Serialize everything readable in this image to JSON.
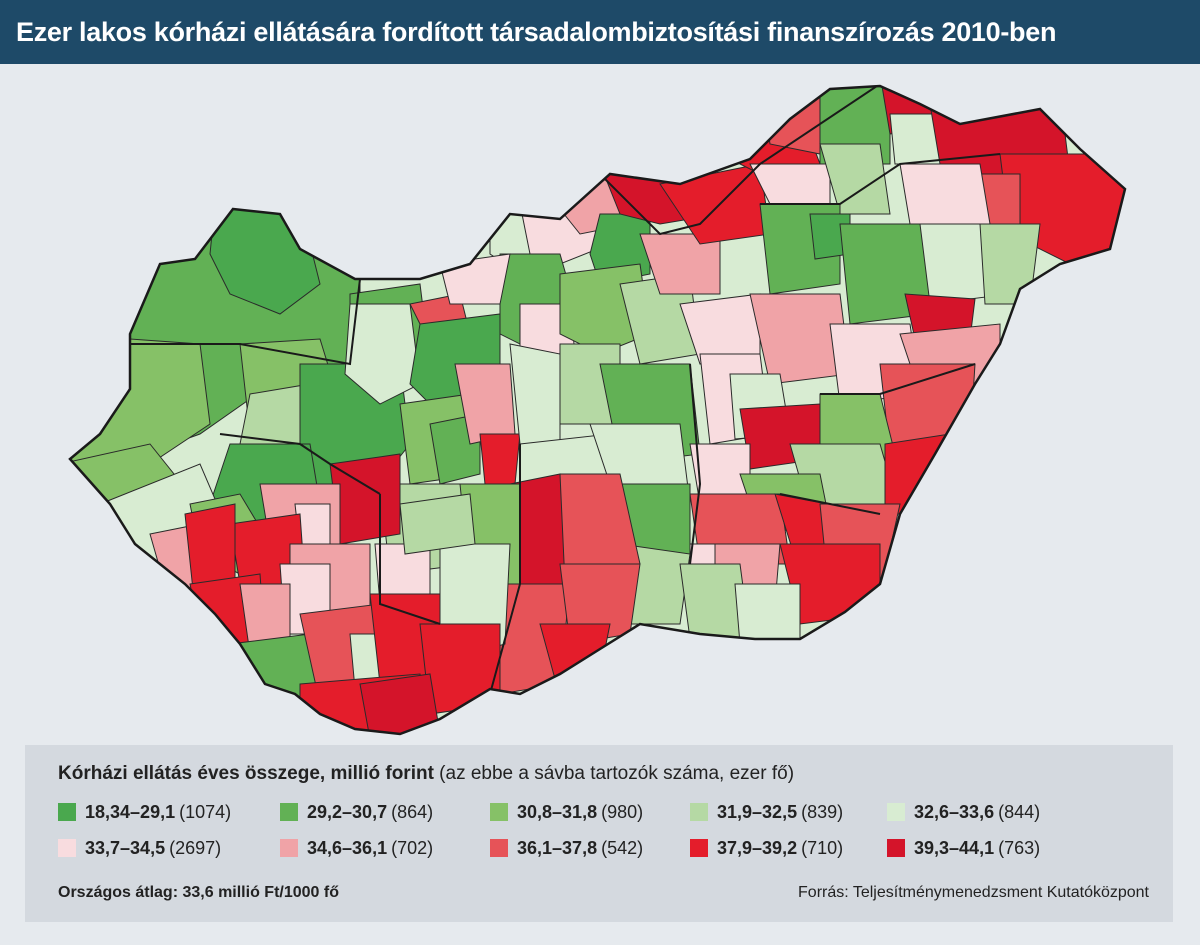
{
  "title": "Ezer lakos kórházi ellátására fordított társadalombiztosítási finanszírozás 2010-ben",
  "legend": {
    "title_bold": "Kórházi ellátás éves összege, millió forint",
    "title_rest": " (az ebbe a sávba tartozók száma, ezer fő)",
    "classes": [
      {
        "range": "18,34–29,1",
        "count": "(1074)",
        "color": "#4aa84e"
      },
      {
        "range": "29,2–30,7",
        "count": "(864)",
        "color": "#62b155"
      },
      {
        "range": "30,8–31,8",
        "count": "(980)",
        "color": "#86c167"
      },
      {
        "range": "31,9–32,5",
        "count": "(839)",
        "color": "#b5d9a4"
      },
      {
        "range": "32,6–33,6",
        "count": "(844)",
        "color": "#d8ecd2"
      },
      {
        "range": "33,7–34,5",
        "count": "(2697)",
        "color": "#f8dcdf"
      },
      {
        "range": "34,6–36,1",
        "count": "(702)",
        "color": "#f0a3a7"
      },
      {
        "range": "36,1–37,8",
        "count": "(542)",
        "color": "#e65358"
      },
      {
        "range": "37,9–39,2",
        "count": "(710)",
        "color": "#e41d2b"
      },
      {
        "range": "39,3–44,1",
        "count": "(763)",
        "color": "#d4142a"
      }
    ],
    "average": "Országos átlag: 33,6 millió Ft/1000 fő",
    "source": "Forrás: Teljesítménymenedzsment Kutatóközpont"
  },
  "map": {
    "subject": "Hungary districts choropleth",
    "colors": {
      "border": "#1a1a1a",
      "background": "#e6eaee"
    }
  }
}
